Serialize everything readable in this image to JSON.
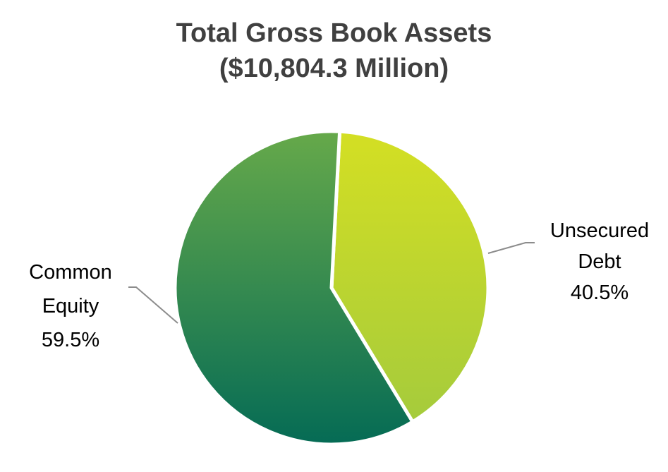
{
  "chart_data": {
    "type": "pie",
    "title": [
      "Total Gross Book Assets",
      "($10,804.3 Million)"
    ],
    "slices": [
      {
        "label": [
          "Unsecured",
          "Debt"
        ],
        "value": 40.5,
        "value_label": "40.5%",
        "colors": [
          "#d4df23",
          "#a5cb3c"
        ]
      },
      {
        "label": [
          "Common",
          "Equity"
        ],
        "value": 59.5,
        "value_label": "59.5%",
        "colors": [
          "#66a94a",
          "#056b55"
        ]
      }
    ],
    "start_angle_deg": 3,
    "legend": "none"
  }
}
